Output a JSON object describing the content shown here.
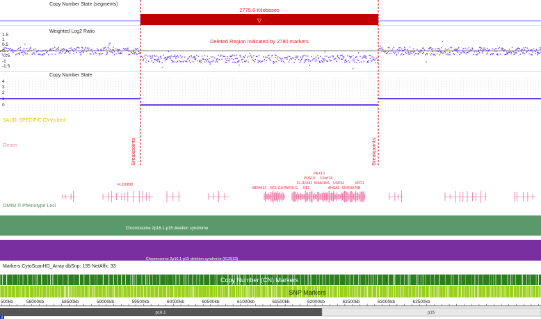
{
  "tracks": {
    "cn_segments": {
      "label": "Copy Number State (segments)"
    },
    "log2": {
      "label": "Weighted Log2 Ratio",
      "ticks": [
        "1.5",
        "1",
        "0.5",
        "0",
        "-0.5",
        "-1",
        "-1.5"
      ]
    },
    "cn_state": {
      "label": "Copy Number State",
      "ticks": [
        "4",
        "3",
        "2",
        "1",
        "0"
      ]
    },
    "saudi": {
      "label": "SAUDI SPECIFIC CNVs.bed"
    },
    "genes": {
      "label": "Genes"
    },
    "omim": {
      "label": "OMIM ® Phenotype Loci"
    },
    "markers": {
      "label": "Markers CytoScanHD_Array dbSnp: 135 NetAffx: 33"
    }
  },
  "deletion": {
    "size_label": "2775.8 Kilobases",
    "collapse_glyph": "▽",
    "region_label": "Deleted Region indicated by 2780 markers",
    "breakpoint_left": "Breakpoints",
    "breakpoint_right": "Breakpoints"
  },
  "genes": [
    {
      "label": "FLJ30838"
    },
    {
      "label": "MIR4432"
    },
    {
      "label": "BCL11A"
    },
    {
      "label": "PAPOLG"
    },
    {
      "label": "REL"
    },
    {
      "label": "FLJ16341"
    },
    {
      "label": "PUS10"
    },
    {
      "label": "PEX13"
    },
    {
      "label": "KIAA1841"
    },
    {
      "label": "C2orf74"
    },
    {
      "label": "AHSA2"
    },
    {
      "label": "USP34"
    },
    {
      "label": "SNORA70B"
    },
    {
      "label": "XPO1"
    }
  ],
  "syndromes": {
    "green_bar": "Chromosome 2p16.1-p15 deletion syndrome",
    "purple_bar": "Chromosome 2p16.1-p15 deletion syndrome (612513)"
  },
  "marker_bars": {
    "cn": "Copy Number (CN) Markers",
    "snp": "SNP Markers"
  },
  "ruler": [
    "500kb",
    "58000kb",
    "58500kb",
    "59000kb",
    "59500kb",
    "60000kb",
    "60500kb",
    "61000kb",
    "61500kb",
    "62000kb",
    "62500kb",
    "63000kb",
    "63500kb"
  ],
  "cytobands": [
    {
      "label": "p16.1"
    },
    {
      "label": "p15"
    }
  ],
  "colors": {
    "deletion": "#c00000",
    "log2_points": "#6a3df0",
    "cn_line": "#6a3df0",
    "omim_green": "#5a9a6a",
    "omim_purple": "#7a2fa0",
    "cn_marker_green": "#2e7d1f",
    "snp_marker_lime": "#9ad01a",
    "gene_pink": "#f06aa0",
    "saudi_yellow": "#e0c000"
  },
  "corner_icon": "2"
}
